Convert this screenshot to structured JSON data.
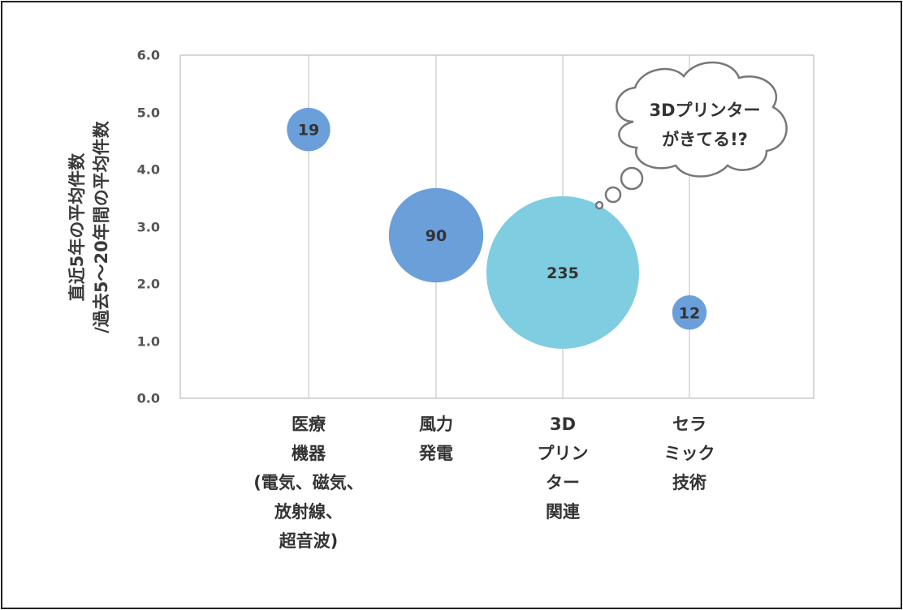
{
  "chart_data": {
    "type": "scatter",
    "subtype": "bubble",
    "ylabel_lines": [
      "直近5年の平均件数",
      "/過去5～20年間の平均件数"
    ],
    "ylim": [
      0,
      6
    ],
    "yticks": [
      "0.0",
      "1.0",
      "2.0",
      "3.0",
      "4.0",
      "5.0",
      "6.0"
    ],
    "grid": "vertical",
    "categories": [
      [
        "医療",
        "機器",
        "(電気、磁気、",
        "放射線、",
        "超音波)"
      ],
      [
        "風力",
        "発電"
      ],
      [
        "3D",
        "プリン",
        "ター",
        "関連"
      ],
      [
        "セラ",
        "ミック",
        "技術"
      ]
    ],
    "points": [
      {
        "x": 1,
        "y": 4.7,
        "size": 19,
        "label": "19",
        "color": "#6a9fda"
      },
      {
        "x": 2,
        "y": 2.85,
        "size": 90,
        "label": "90",
        "color": "#6a9fda"
      },
      {
        "x": 3,
        "y": 2.2,
        "size": 235,
        "label": "235",
        "color": "#7fcde0"
      },
      {
        "x": 4,
        "y": 1.5,
        "size": 12,
        "label": "12",
        "color": "#6a9fda"
      }
    ],
    "annotation": {
      "lines": [
        "3Dプリンター",
        "がきてる!?"
      ]
    }
  }
}
